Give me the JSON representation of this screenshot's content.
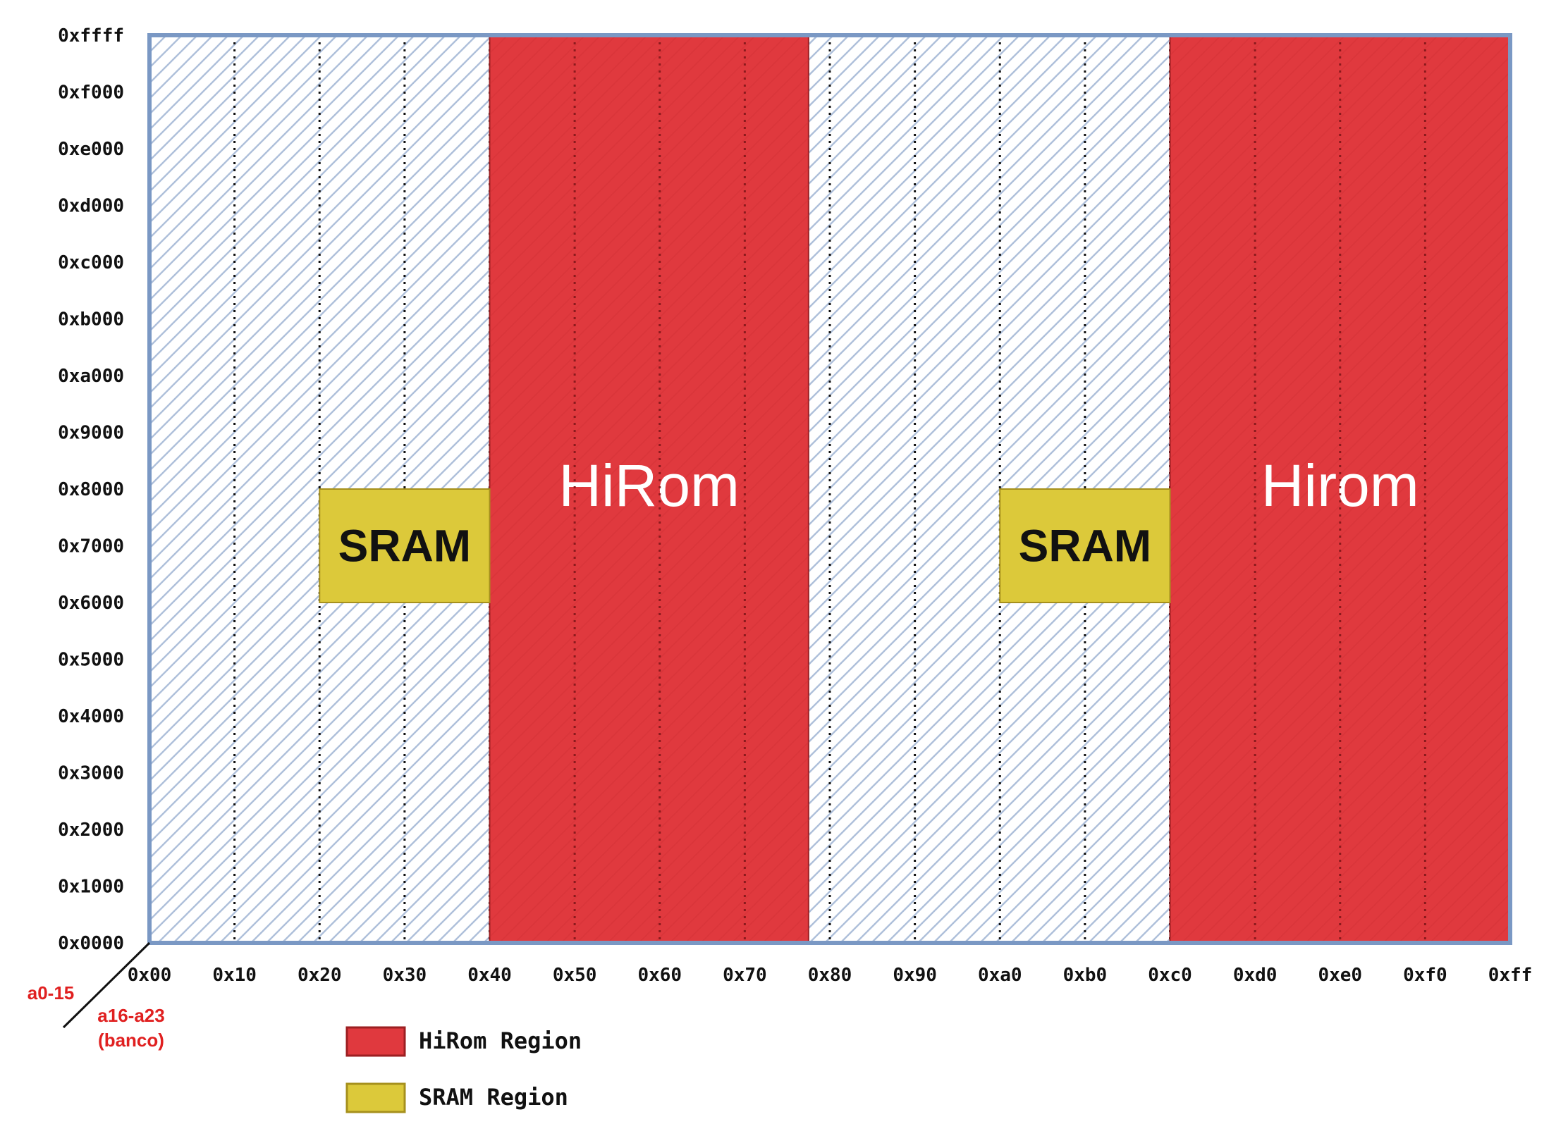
{
  "colors": {
    "frame": "#7a98c4",
    "hatch": "#aebfda",
    "hirom": "#e0393e",
    "hirom_stroke": "#9c1f22",
    "sram": "#dcc93a",
    "sram_stroke": "#a6901d",
    "label_red": "#e02020",
    "text": "#111111"
  },
  "y_axis": {
    "min": 0,
    "max": 65535,
    "ticks": [
      {
        "v": 0,
        "label": "0x0000"
      },
      {
        "v": 4096,
        "label": "0x1000"
      },
      {
        "v": 8192,
        "label": "0x2000"
      },
      {
        "v": 12288,
        "label": "0x3000"
      },
      {
        "v": 16384,
        "label": "0x4000"
      },
      {
        "v": 20480,
        "label": "0x5000"
      },
      {
        "v": 24576,
        "label": "0x6000"
      },
      {
        "v": 28672,
        "label": "0x7000"
      },
      {
        "v": 32768,
        "label": "0x8000"
      },
      {
        "v": 36864,
        "label": "0x9000"
      },
      {
        "v": 40960,
        "label": "0xa000"
      },
      {
        "v": 45056,
        "label": "0xb000"
      },
      {
        "v": 49152,
        "label": "0xc000"
      },
      {
        "v": 53248,
        "label": "0xd000"
      },
      {
        "v": 57344,
        "label": "0xe000"
      },
      {
        "v": 61440,
        "label": "0xf000"
      },
      {
        "v": 65535,
        "label": "0xffff"
      }
    ]
  },
  "x_axis": {
    "min": 0,
    "max": 255,
    "ticks": [
      {
        "v": 0,
        "label": "0x00"
      },
      {
        "v": 16,
        "label": "0x10"
      },
      {
        "v": 32,
        "label": "0x20"
      },
      {
        "v": 48,
        "label": "0x30"
      },
      {
        "v": 64,
        "label": "0x40"
      },
      {
        "v": 80,
        "label": "0x50"
      },
      {
        "v": 96,
        "label": "0x60"
      },
      {
        "v": 112,
        "label": "0x70"
      },
      {
        "v": 128,
        "label": "0x80"
      },
      {
        "v": 144,
        "label": "0x90"
      },
      {
        "v": 160,
        "label": "0xa0"
      },
      {
        "v": 176,
        "label": "0xb0"
      },
      {
        "v": 192,
        "label": "0xc0"
      },
      {
        "v": 208,
        "label": "0xd0"
      },
      {
        "v": 224,
        "label": "0xe0"
      },
      {
        "v": 240,
        "label": "0xf0"
      },
      {
        "v": 255,
        "label": "0xff"
      }
    ]
  },
  "axis_labels": {
    "y": "a0-15",
    "x_line1": "a16-a23",
    "x_line2": "(banco)"
  },
  "regions": [
    {
      "kind": "hirom",
      "label": "HiRom",
      "bank_start": 64,
      "bank_end": 124,
      "addr_start": 0,
      "addr_end": 65535
    },
    {
      "kind": "hirom",
      "label": "Hirom",
      "bank_start": 192,
      "bank_end": 256,
      "addr_start": 0,
      "addr_end": 65535
    },
    {
      "kind": "sram",
      "label": "SRAM",
      "bank_start": 32,
      "bank_end": 64,
      "addr_start": 24576,
      "addr_end": 32768
    },
    {
      "kind": "sram",
      "label": "SRAM",
      "bank_start": 160,
      "bank_end": 192,
      "addr_start": 24576,
      "addr_end": 32768
    }
  ],
  "legend": [
    {
      "kind": "hirom",
      "label": "HiRom Region"
    },
    {
      "kind": "sram",
      "label": "SRAM Region"
    }
  ]
}
